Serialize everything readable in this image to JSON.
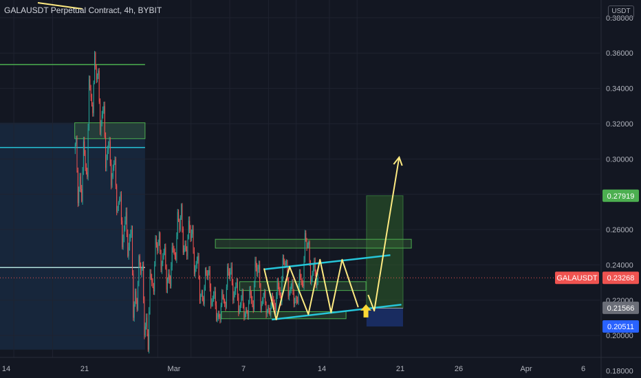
{
  "header": {
    "title": "GALAUSDT Perpetual Contract, 4h, BYBIT"
  },
  "currency_label": "USDT",
  "colors": {
    "background": "#131722",
    "up": "#26a69a",
    "down": "#ef5350",
    "pattern": "#ffeb82",
    "channel": "#26c6da",
    "zone_green": "#4caf50",
    "zone_blue": "#1e3a8a"
  },
  "chart_data": {
    "type": "candlestick",
    "symbol": "GALAUSDT",
    "timeframe": "4h",
    "exchange": "BYBIT",
    "x_tick_labels": [
      "14",
      "21",
      "Mar",
      "7",
      "14",
      "21",
      "26",
      "Apr",
      "6"
    ],
    "y_tick_labels": [
      "0.18000",
      "0.20000",
      "0.22000",
      "0.24000",
      "0.26000",
      "0.28000",
      "0.30000",
      "0.32000",
      "0.34000",
      "0.36000",
      "0.38000"
    ],
    "ylim": [
      0.1765,
      0.3805
    ],
    "price_labels": [
      {
        "text": "0.27919",
        "value": 0.27919,
        "color": "#4caf50"
      },
      {
        "text": "GALAUSDT",
        "value": 0.23268,
        "color": "#ef5350",
        "kind": "symbol"
      },
      {
        "text": "0.23268",
        "value": 0.23268,
        "color": "#ef5350"
      },
      {
        "text": "0.21566",
        "value": 0.21566,
        "color": "#6b6e78"
      },
      {
        "text": "0.20511",
        "value": 0.20511,
        "color": "#2962ff"
      }
    ],
    "last_price": 0.23268,
    "horizontal_levels": [
      {
        "value": 0.3535,
        "color": "#4caf50"
      },
      {
        "value": 0.3065,
        "color": "#26c6da"
      },
      {
        "value": 0.2385,
        "color": "#b2dfdb"
      }
    ],
    "zones": [
      {
        "day_from": -15.0,
        "day_to": -2.3,
        "price_from": 0.3115,
        "price_to": 0.3205
      },
      {
        "day_from": 10.4,
        "day_to": 45.8,
        "price_from": 0.2495,
        "price_to": 0.2545
      },
      {
        "day_from": 14.8,
        "day_to": 37.6,
        "price_from": 0.2255,
        "price_to": 0.2305
      },
      {
        "day_from": 11.5,
        "day_to": 34.0,
        "price_from": 0.2095,
        "price_to": 0.2135
      }
    ],
    "position": {
      "day_from": 37.7,
      "day_to": 44.3,
      "target_from": 0.2155,
      "target_to": 0.2792,
      "stop_from": 0.2051,
      "stop_to": 0.2155
    },
    "projection": [
      {
        "day": 38.0,
        "price": 0.223
      },
      {
        "day": 39.1,
        "price": 0.214
      },
      {
        "day": 41.2,
        "price": 0.255
      },
      {
        "day": 43.6,
        "price": 0.301
      }
    ],
    "waves": [
      {
        "day": 19.2,
        "price": 0.238
      },
      {
        "day": 21.4,
        "price": 0.209
      },
      {
        "day": 23.8,
        "price": 0.239
      },
      {
        "day": 27.2,
        "price": 0.212
      },
      {
        "day": 29.3,
        "price": 0.243
      },
      {
        "day": 31.3,
        "price": 0.213
      },
      {
        "day": 33.3,
        "price": 0.243
      },
      {
        "day": 36.2,
        "price": 0.216
      }
    ],
    "channel_upper": [
      {
        "day": 19.2,
        "price": 0.2375
      },
      {
        "day": 42.0,
        "price": 0.2455
      }
    ],
    "channel_lower": [
      {
        "day": 20.6,
        "price": 0.209
      },
      {
        "day": 44.0,
        "price": 0.2175
      }
    ],
    "signal_arrow": {
      "day": 37.6,
      "price": 0.211
    },
    "ohlc_daily": [
      {
        "day": -15,
        "o": 0.305,
        "h": 0.312,
        "l": 0.275,
        "c": 0.29
      },
      {
        "day": -14,
        "o": 0.29,
        "h": 0.31,
        "l": 0.276,
        "c": 0.295
      },
      {
        "day": -13,
        "o": 0.295,
        "h": 0.345,
        "l": 0.29,
        "c": 0.335
      },
      {
        "day": -12,
        "o": 0.335,
        "h": 0.36,
        "l": 0.326,
        "c": 0.345
      },
      {
        "day": -11,
        "o": 0.345,
        "h": 0.35,
        "l": 0.315,
        "c": 0.325
      },
      {
        "day": -10,
        "o": 0.325,
        "h": 0.33,
        "l": 0.295,
        "c": 0.305
      },
      {
        "day": -9,
        "o": 0.305,
        "h": 0.31,
        "l": 0.285,
        "c": 0.295
      },
      {
        "day": -8,
        "o": 0.295,
        "h": 0.3,
        "l": 0.27,
        "c": 0.275
      },
      {
        "day": -7,
        "o": 0.275,
        "h": 0.28,
        "l": 0.25,
        "c": 0.26
      },
      {
        "day": -6,
        "o": 0.26,
        "h": 0.27,
        "l": 0.245,
        "c": 0.255
      },
      {
        "day": -5,
        "o": 0.255,
        "h": 0.26,
        "l": 0.21,
        "c": 0.225
      },
      {
        "day": -4,
        "o": 0.225,
        "h": 0.245,
        "l": 0.215,
        "c": 0.235
      },
      {
        "day": -3,
        "o": 0.235,
        "h": 0.24,
        "l": 0.2,
        "c": 0.21
      },
      {
        "day": -2,
        "o": 0.21,
        "h": 0.235,
        "l": 0.192,
        "c": 0.23
      },
      {
        "day": -1,
        "o": 0.23,
        "h": 0.255,
        "l": 0.225,
        "c": 0.248
      },
      {
        "day": 0,
        "o": 0.248,
        "h": 0.258,
        "l": 0.237,
        "c": 0.245
      },
      {
        "day": 1,
        "o": 0.245,
        "h": 0.25,
        "l": 0.226,
        "c": 0.235
      },
      {
        "day": 2,
        "o": 0.235,
        "h": 0.25,
        "l": 0.228,
        "c": 0.247
      },
      {
        "day": 3,
        "o": 0.247,
        "h": 0.27,
        "l": 0.243,
        "c": 0.26
      },
      {
        "day": 4,
        "o": 0.26,
        "h": 0.274,
        "l": 0.247,
        "c": 0.252
      },
      {
        "day": 5,
        "o": 0.252,
        "h": 0.265,
        "l": 0.245,
        "c": 0.255
      },
      {
        "day": 6,
        "o": 0.255,
        "h": 0.26,
        "l": 0.235,
        "c": 0.24
      },
      {
        "day": 7,
        "o": 0.24,
        "h": 0.245,
        "l": 0.22,
        "c": 0.225
      },
      {
        "day": 8,
        "o": 0.225,
        "h": 0.237,
        "l": 0.218,
        "c": 0.233
      },
      {
        "day": 9,
        "o": 0.233,
        "h": 0.237,
        "l": 0.217,
        "c": 0.22
      },
      {
        "day": 10,
        "o": 0.22,
        "h": 0.225,
        "l": 0.209,
        "c": 0.212
      },
      {
        "day": 11,
        "o": 0.212,
        "h": 0.225,
        "l": 0.209,
        "c": 0.22
      },
      {
        "day": 12,
        "o": 0.22,
        "h": 0.239,
        "l": 0.216,
        "c": 0.233
      },
      {
        "day": 13,
        "o": 0.233,
        "h": 0.239,
        "l": 0.22,
        "c": 0.225
      },
      {
        "day": 14,
        "o": 0.225,
        "h": 0.23,
        "l": 0.213,
        "c": 0.217
      },
      {
        "day": 15,
        "o": 0.217,
        "h": 0.225,
        "l": 0.21,
        "c": 0.215
      },
      {
        "day": 16,
        "o": 0.215,
        "h": 0.226,
        "l": 0.211,
        "c": 0.22
      },
      {
        "day": 17,
        "o": 0.22,
        "h": 0.242,
        "l": 0.215,
        "c": 0.235
      },
      {
        "day": 18,
        "o": 0.235,
        "h": 0.24,
        "l": 0.215,
        "c": 0.22
      },
      {
        "day": 19,
        "o": 0.22,
        "h": 0.225,
        "l": 0.212,
        "c": 0.216
      },
      {
        "day": 20,
        "o": 0.216,
        "h": 0.222,
        "l": 0.212,
        "c": 0.218
      },
      {
        "day": 21,
        "o": 0.218,
        "h": 0.23,
        "l": 0.214,
        "c": 0.225
      },
      {
        "day": 22,
        "o": 0.225,
        "h": 0.244,
        "l": 0.219,
        "c": 0.24
      },
      {
        "day": 23,
        "o": 0.24,
        "h": 0.242,
        "l": 0.222,
        "c": 0.226
      },
      {
        "day": 24,
        "o": 0.226,
        "h": 0.23,
        "l": 0.218,
        "c": 0.22
      },
      {
        "day": 25,
        "o": 0.22,
        "h": 0.235,
        "l": 0.219,
        "c": 0.23
      },
      {
        "day": 26,
        "o": 0.23,
        "h": 0.258,
        "l": 0.228,
        "c": 0.25
      },
      {
        "day": 27,
        "o": 0.25,
        "h": 0.253,
        "l": 0.23,
        "c": 0.235
      },
      {
        "day": 28,
        "o": 0.235,
        "h": 0.242,
        "l": 0.228,
        "c": 0.2327
      }
    ]
  }
}
